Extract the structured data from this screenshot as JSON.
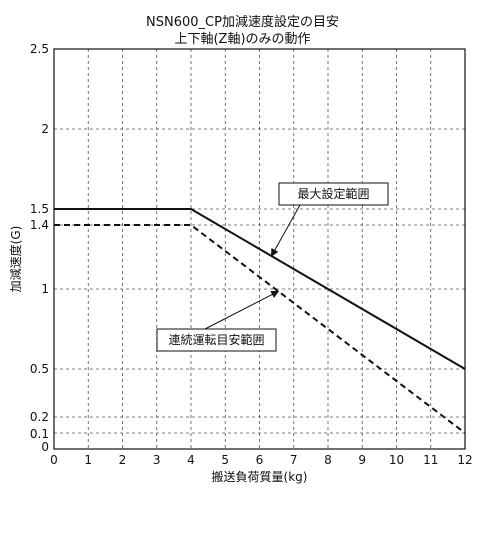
{
  "chart_data": {
    "type": "line",
    "title": "NSN600_CP加減速度設定の目安",
    "subtitle": "上下軸(Z軸)のみの動作",
    "xlabel": "搬送負荷質量(kg)",
    "ylabel": "加減速度(G)",
    "xlim": [
      0,
      12
    ],
    "ylim": [
      0,
      2.5
    ],
    "x_ticks": [
      "0",
      "1",
      "2",
      "3",
      "4",
      "5",
      "6",
      "7",
      "8",
      "9",
      "10",
      "11",
      "12"
    ],
    "y_ticks": [
      {
        "value": 0,
        "label": "0"
      },
      {
        "value": 0.1,
        "label": "0.1"
      },
      {
        "value": 0.2,
        "label": "0.2"
      },
      {
        "value": 0.5,
        "label": "0.5"
      },
      {
        "value": 1,
        "label": "1"
      },
      {
        "value": 1.4,
        "label": "1.4"
      },
      {
        "value": 1.5,
        "label": "1.5"
      },
      {
        "value": 2,
        "label": "2"
      },
      {
        "value": 2.5,
        "label": "2.5"
      }
    ],
    "grid": true,
    "series": [
      {
        "name": "最大設定範囲",
        "style": "solid",
        "color": "#111111",
        "x": [
          0,
          4,
          12
        ],
        "y": [
          1.5,
          1.5,
          0.5
        ]
      },
      {
        "name": "連続運転目安範囲",
        "style": "dashed",
        "color": "#111111",
        "x": [
          0,
          4,
          12
        ],
        "y": [
          1.4,
          1.4,
          0.1
        ]
      }
    ],
    "annotations": [
      {
        "text": "最大設定範囲",
        "points_to_series": 0
      },
      {
        "text": "連続運転目安範囲",
        "points_to_series": 1
      }
    ]
  }
}
